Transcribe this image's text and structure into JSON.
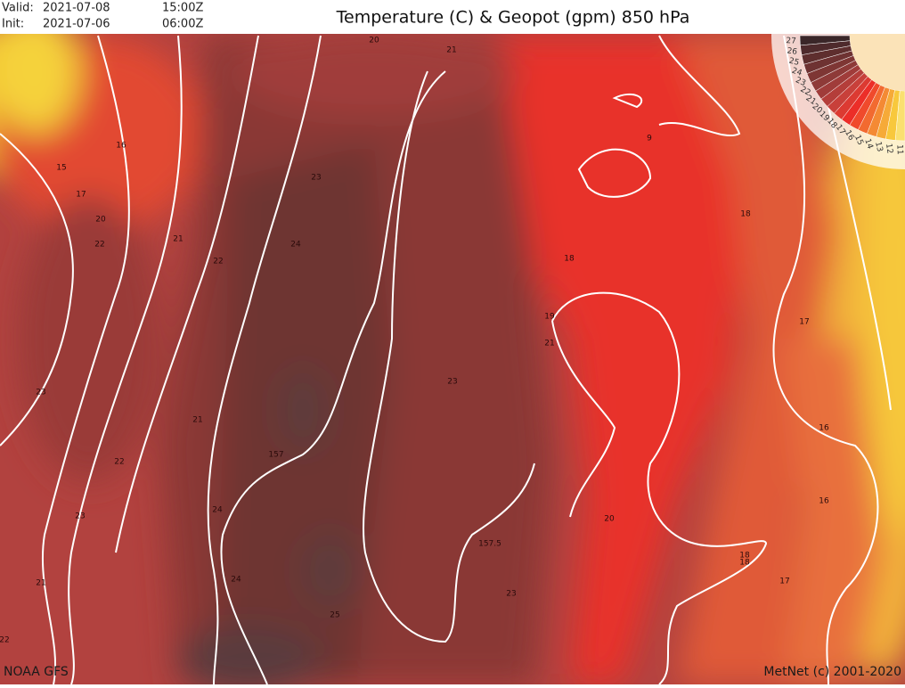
{
  "header": {
    "valid_label": "Valid:",
    "valid_date": "2021-07-08",
    "valid_time": "15:00Z",
    "init_label": "Init:",
    "init_date": "2021-07-06",
    "init_time": "06:00Z",
    "title": "Temperature (C) & Geopot (gpm) 850 hPa"
  },
  "contour_labels": [
    20,
    21,
    16,
    15,
    17,
    20,
    21,
    22,
    23,
    24,
    22,
    9,
    18,
    18,
    19,
    21,
    17,
    23,
    23,
    21,
    16,
    157,
    22,
    16,
    23,
    24,
    20,
    157.5,
    18,
    18,
    21,
    17,
    23,
    24,
    25,
    22
  ],
  "legend": {
    "labels": [
      27,
      26,
      25,
      24,
      23,
      22,
      21,
      20,
      19,
      18,
      17,
      16,
      15,
      14,
      13,
      12,
      11
    ]
  },
  "footer": {
    "source": "NOAA GFS",
    "credit": "MetNet (c) 2001-2020"
  }
}
